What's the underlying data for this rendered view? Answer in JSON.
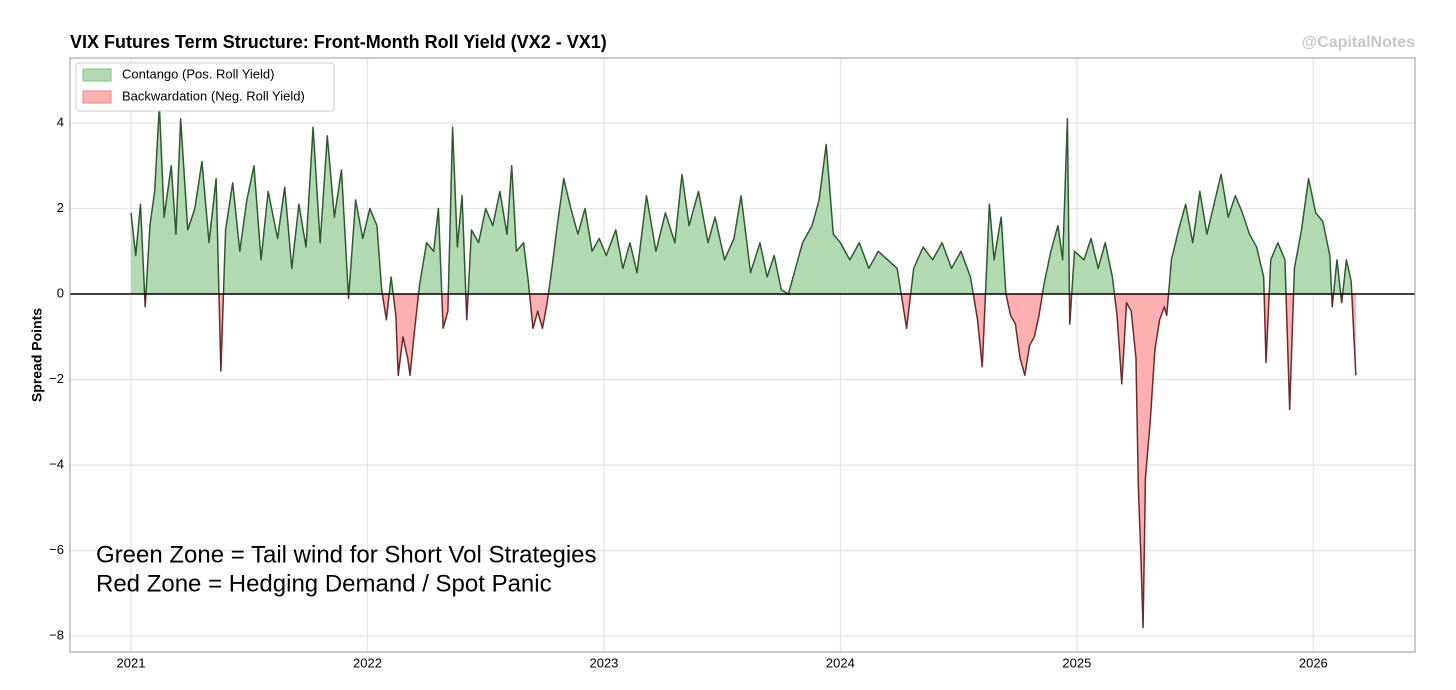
{
  "chart_data": {
    "type": "area",
    "title": "VIX Futures Term Structure: Front-Month Roll Yield (VX2 - VX1)",
    "watermark": "@CapitalNotes",
    "y_label": "Spread Points",
    "annotation": [
      "Green Zone = Tail wind for Short Vol Strategies",
      "Red Zone = Hedging Demand / Spot Panic"
    ],
    "legend": [
      {
        "name": "Contango (Pos. Roll Yield)",
        "color": "#b2dab2",
        "line_color": "#2f5a30"
      },
      {
        "name": "Backwardation (Neg. Roll Yield)",
        "color": "#ffb0b0",
        "line_color": "#6b2a2a"
      }
    ],
    "legend_position": "upper left",
    "grid": true,
    "xlim": [
      2020.742,
      2026.43
    ],
    "xticks": [
      2021,
      2022,
      2023,
      2024,
      2025,
      2026
    ],
    "ylim": [
      -8.37,
      5.52
    ],
    "yticks": [
      {
        "value": -8,
        "label": "−8"
      },
      {
        "value": -6,
        "label": "−6"
      },
      {
        "value": -4,
        "label": "−4"
      },
      {
        "value": -2,
        "label": "−2"
      },
      0,
      2,
      4
    ],
    "x": [
      2021.0,
      2021.02,
      2021.04,
      2021.06,
      2021.08,
      2021.1,
      2021.12,
      2021.14,
      2021.17,
      2021.19,
      2021.21,
      2021.24,
      2021.27,
      2021.3,
      2021.33,
      2021.36,
      2021.38,
      2021.4,
      2021.43,
      2021.46,
      2021.49,
      2021.52,
      2021.55,
      2021.58,
      2021.62,
      2021.65,
      2021.68,
      2021.71,
      2021.74,
      2021.77,
      2021.8,
      2021.83,
      2021.86,
      2021.89,
      2021.92,
      2021.95,
      2021.98,
      2022.01,
      2022.04,
      2022.06,
      2022.08,
      2022.1,
      2022.12,
      2022.13,
      2022.15,
      2022.17,
      2022.18,
      2022.2,
      2022.22,
      2022.25,
      2022.28,
      2022.3,
      2022.32,
      2022.34,
      2022.36,
      2022.38,
      2022.4,
      2022.42,
      2022.44,
      2022.47,
      2022.5,
      2022.53,
      2022.56,
      2022.59,
      2022.61,
      2022.63,
      2022.66,
      2022.68,
      2022.7,
      2022.72,
      2022.74,
      2022.76,
      2022.78,
      2022.8,
      2022.83,
      2022.86,
      2022.89,
      2022.92,
      2022.95,
      2022.98,
      2023.01,
      2023.05,
      2023.08,
      2023.11,
      2023.14,
      2023.18,
      2023.22,
      2023.26,
      2023.3,
      2023.33,
      2023.36,
      2023.4,
      2023.44,
      2023.47,
      2023.51,
      2023.55,
      2023.58,
      2023.62,
      2023.66,
      2023.69,
      2023.72,
      2023.75,
      2023.78,
      2023.81,
      2023.84,
      2023.88,
      2023.91,
      2023.94,
      2023.97,
      2024.0,
      2024.04,
      2024.08,
      2024.12,
      2024.16,
      2024.2,
      2024.24,
      2024.28,
      2024.31,
      2024.35,
      2024.39,
      2024.43,
      2024.47,
      2024.51,
      2024.55,
      2024.58,
      2024.6,
      2024.63,
      2024.65,
      2024.68,
      2024.7,
      2024.72,
      2024.74,
      2024.76,
      2024.78,
      2024.8,
      2024.82,
      2024.84,
      2024.86,
      2024.89,
      2024.92,
      2024.94,
      2024.96,
      2024.97,
      2024.99,
      2025.03,
      2025.06,
      2025.09,
      2025.12,
      2025.15,
      2025.17,
      2025.19,
      2025.21,
      2025.23,
      2025.25,
      2025.26,
      2025.27,
      2025.28,
      2025.29,
      2025.31,
      2025.33,
      2025.35,
      2025.37,
      2025.38,
      2025.4,
      2025.43,
      2025.46,
      2025.49,
      2025.52,
      2025.55,
      2025.58,
      2025.61,
      2025.64,
      2025.67,
      2025.7,
      2025.73,
      2025.76,
      2025.79,
      2025.8,
      2025.82,
      2025.85,
      2025.88,
      2025.9,
      2025.92,
      2025.95,
      2025.98,
      2026.01,
      2026.04,
      2026.07,
      2026.08,
      2026.1,
      2026.12,
      2026.14,
      2026.16,
      2026.18
    ],
    "values": [
      1.9,
      0.9,
      2.1,
      -0.3,
      1.6,
      2.4,
      4.4,
      1.8,
      3.0,
      1.4,
      4.1,
      1.5,
      2.0,
      3.1,
      1.2,
      2.7,
      -1.8,
      1.5,
      2.6,
      1.0,
      2.2,
      3.0,
      0.8,
      2.4,
      1.3,
      2.5,
      0.6,
      2.1,
      1.1,
      3.9,
      1.2,
      3.7,
      1.8,
      2.9,
      -0.1,
      2.2,
      1.3,
      2.0,
      1.6,
      0.1,
      -0.6,
      0.4,
      -0.5,
      -1.9,
      -1.0,
      -1.5,
      -1.9,
      -0.8,
      0.2,
      1.2,
      1.0,
      2.0,
      -0.8,
      -0.4,
      3.9,
      1.1,
      2.3,
      -0.6,
      1.5,
      1.2,
      2.0,
      1.6,
      2.4,
      1.4,
      3.0,
      1.0,
      1.2,
      0.3,
      -0.8,
      -0.4,
      -0.8,
      -0.2,
      0.6,
      1.5,
      2.7,
      2.0,
      1.4,
      2.0,
      1.0,
      1.3,
      0.9,
      1.5,
      0.6,
      1.2,
      0.5,
      2.3,
      1.0,
      1.9,
      1.2,
      2.8,
      1.6,
      2.4,
      1.2,
      1.8,
      0.8,
      1.3,
      2.3,
      0.5,
      1.2,
      0.4,
      0.9,
      0.1,
      0.0,
      0.6,
      1.2,
      1.6,
      2.2,
      3.5,
      1.4,
      1.2,
      0.8,
      1.2,
      0.6,
      1.0,
      0.8,
      0.6,
      -0.8,
      0.6,
      1.1,
      0.8,
      1.2,
      0.6,
      1.0,
      0.4,
      -0.6,
      -1.7,
      2.1,
      0.8,
      1.8,
      0.0,
      -0.5,
      -0.7,
      -1.5,
      -1.9,
      -1.2,
      -1.0,
      -0.5,
      0.2,
      1.0,
      1.6,
      0.8,
      4.1,
      -0.7,
      1.0,
      0.8,
      1.3,
      0.6,
      1.2,
      0.4,
      -0.5,
      -2.1,
      -0.2,
      -0.4,
      -1.5,
      -4.5,
      -6.0,
      -7.8,
      -4.3,
      -3.0,
      -1.3,
      -0.6,
      -0.3,
      -0.5,
      0.8,
      1.5,
      2.1,
      1.2,
      2.4,
      1.4,
      2.1,
      2.8,
      1.8,
      2.3,
      1.9,
      1.4,
      1.1,
      0.4,
      -1.6,
      0.8,
      1.2,
      0.8,
      -2.7,
      0.6,
      1.5,
      2.7,
      1.9,
      1.7,
      0.9,
      -0.3,
      0.8,
      -0.2,
      0.8,
      0.3,
      -1.9
    ]
  }
}
